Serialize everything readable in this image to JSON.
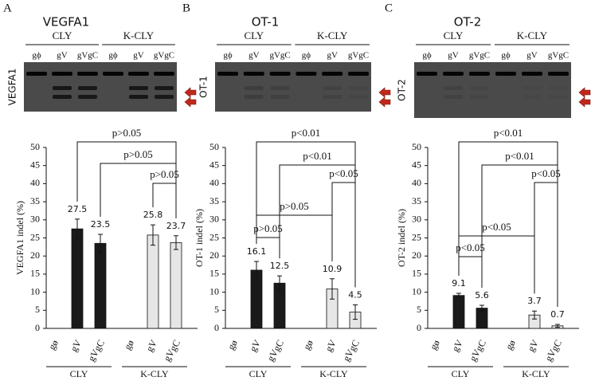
{
  "chart_data": [
    {
      "type": "bar",
      "panel": "A",
      "title": "VEGFA1",
      "gel_label": "VEGFA1",
      "groups": [
        "CLY",
        "K-CLY"
      ],
      "gel_lanes": [
        "gϕ",
        "gV",
        "gVgC",
        "gϕ",
        "gV",
        "gVgC"
      ],
      "categories": [
        "gø",
        "gV",
        "gVgC",
        "gø",
        "gV",
        "gVgC"
      ],
      "values": [
        0,
        27.5,
        23.5,
        0,
        25.8,
        23.7
      ],
      "errors": [
        0,
        2.7,
        2.5,
        0,
        2.8,
        1.9
      ],
      "colors": [
        "#1a1a1a",
        "#e6e6e6"
      ],
      "ylabel": "VEGFA1 indel (%)",
      "ylim": [
        0,
        50
      ],
      "yticks": [
        0,
        5,
        10,
        15,
        20,
        25,
        30,
        35,
        40,
        45,
        50
      ],
      "brackets": [
        {
          "from": 1,
          "to": 5,
          "label": "p>0.05"
        },
        {
          "from": 2,
          "to": 5,
          "label": "p>0.05"
        },
        {
          "from": 4,
          "to": 5,
          "label": "p>0.05"
        }
      ]
    },
    {
      "type": "bar",
      "panel": "B",
      "title": "OT-1",
      "gel_label": "OT-1",
      "groups": [
        "CLY",
        "K-CLY"
      ],
      "gel_lanes": [
        "gϕ",
        "gV",
        "gVgC",
        "gϕ",
        "gV",
        "gVgC"
      ],
      "categories": [
        "gø",
        "gV",
        "gVgC",
        "gø",
        "gV",
        "gVgC"
      ],
      "values": [
        0,
        16.1,
        12.5,
        0,
        10.9,
        4.5
      ],
      "errors": [
        0,
        2.4,
        2.0,
        0,
        2.8,
        2.0
      ],
      "colors": [
        "#1a1a1a",
        "#e6e6e6"
      ],
      "ylabel": "OT-1 indel (%)",
      "ylim": [
        0,
        50
      ],
      "yticks": [
        0,
        5,
        10,
        15,
        20,
        25,
        30,
        35,
        40,
        45,
        50
      ],
      "brackets": [
        {
          "from": 1,
          "to": 5,
          "label": "p<0.01"
        },
        {
          "from": 2,
          "to": 5,
          "label": "p<0.01"
        },
        {
          "from": 4,
          "to": 5,
          "label": "p<0.05"
        },
        {
          "from": 1,
          "to": 4,
          "label": "p>0.05"
        },
        {
          "from": 1,
          "to": 2,
          "label": "p>0.05"
        }
      ]
    },
    {
      "type": "bar",
      "panel": "C",
      "title": "OT-2",
      "gel_label": "OT-2",
      "groups": [
        "CLY",
        "K-CLY"
      ],
      "gel_lanes": [
        "gϕ",
        "gV",
        "gVgC",
        "gϕ",
        "gV",
        "gVgC"
      ],
      "categories": [
        "gø",
        "gV",
        "gVgC",
        "gø",
        "gV",
        "gVgC"
      ],
      "values": [
        0,
        9.1,
        5.6,
        0,
        3.7,
        0.7
      ],
      "errors": [
        0,
        0.6,
        0.8,
        0,
        1.1,
        0.4
      ],
      "colors": [
        "#1a1a1a",
        "#e6e6e6"
      ],
      "ylabel": "OT-2 indel (%)",
      "ylim": [
        0,
        50
      ],
      "yticks": [
        0,
        5,
        10,
        15,
        20,
        25,
        30,
        35,
        40,
        45,
        50
      ],
      "brackets": [
        {
          "from": 1,
          "to": 5,
          "label": "p<0.01"
        },
        {
          "from": 2,
          "to": 5,
          "label": "p<0.01"
        },
        {
          "from": 4,
          "to": 5,
          "label": "p<0.05"
        },
        {
          "from": 1,
          "to": 4,
          "label": "p<0.05"
        },
        {
          "from": 1,
          "to": 2,
          "label": "p<0.05"
        }
      ]
    }
  ]
}
